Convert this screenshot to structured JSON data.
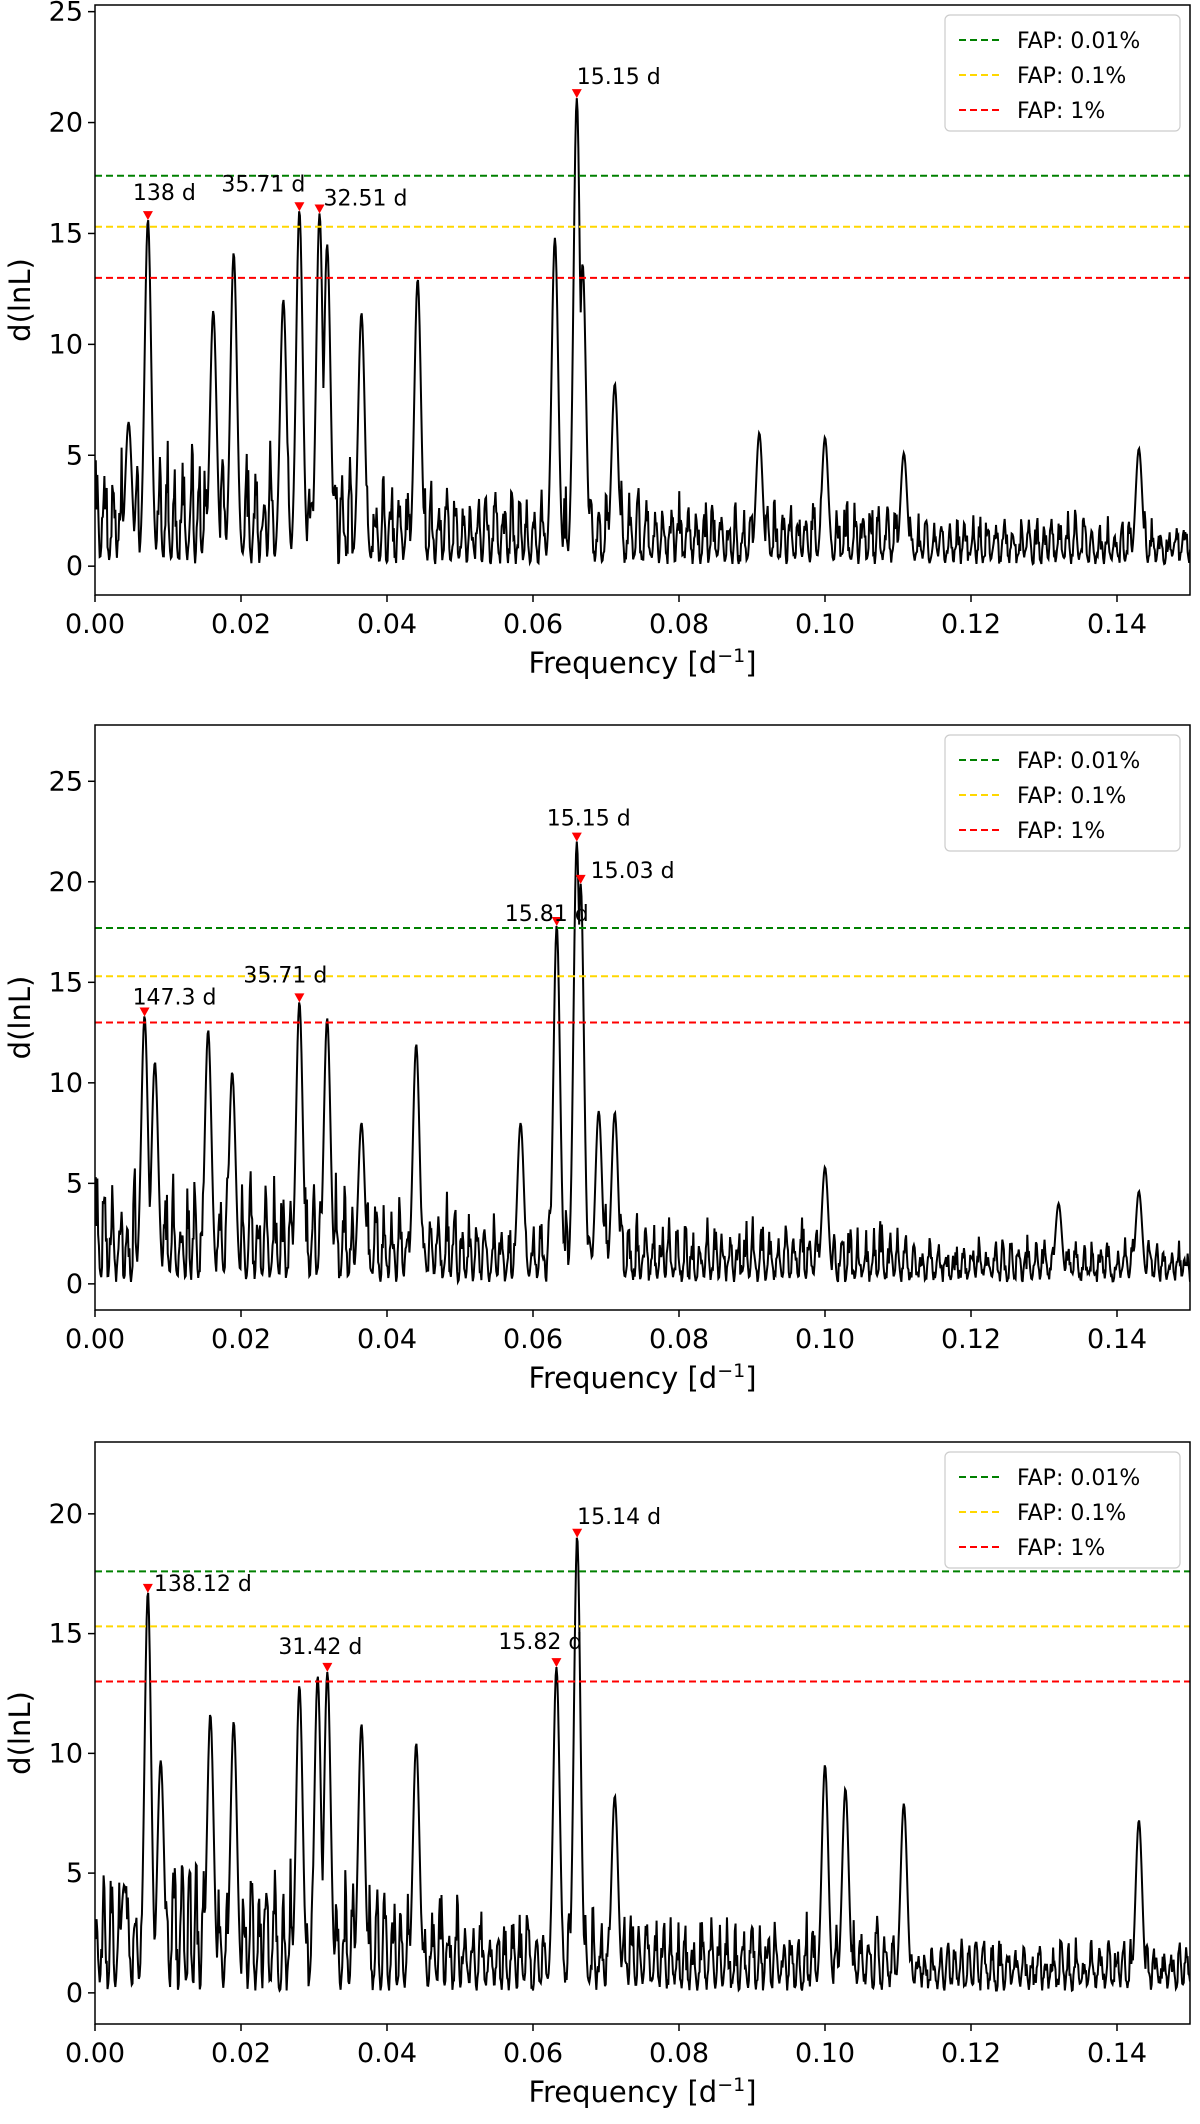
{
  "chart_data": [
    {
      "type": "line",
      "xlabel": "Frequency",
      "xlabel_unit": "d",
      "xlabel_unit_exp": "−1",
      "ylabel": "d(lnL)",
      "xlim": [
        0,
        0.15
      ],
      "ylim": [
        -1.3,
        25.3
      ],
      "xticks": [
        0.0,
        0.02,
        0.04,
        0.06,
        0.08,
        0.1,
        0.12,
        0.14
      ],
      "xtick_labels": [
        "0.00",
        "0.02",
        "0.04",
        "0.06",
        "0.08",
        "0.10",
        "0.12",
        "0.14"
      ],
      "yticks": [
        0,
        5,
        10,
        15,
        20,
        25
      ],
      "ytick_labels": [
        "0",
        "5",
        "10",
        "15",
        "20",
        "25"
      ],
      "fap_lines": [
        {
          "label": "FAP: 0.01%",
          "value": 17.6,
          "color": "#008000"
        },
        {
          "label": "FAP: 0.1%",
          "value": 15.3,
          "color": "#ffd700"
        },
        {
          "label": "FAP: 1%",
          "value": 13.0,
          "color": "#ff0000"
        }
      ],
      "peaks": [
        {
          "label": "138 d",
          "x": 0.00725,
          "y": 15.6
        },
        {
          "label": "35.71 d",
          "x": 0.028,
          "y": 16.0
        },
        {
          "label": "32.51 d",
          "x": 0.03076,
          "y": 15.9
        },
        {
          "label": "15.15 d",
          "x": 0.066,
          "y": 21.1
        }
      ],
      "extra_peaks": [
        [
          0.0046,
          6.5
        ],
        [
          0.0162,
          11.5
        ],
        [
          0.019,
          14.1
        ],
        [
          0.0258,
          12.0
        ],
        [
          0.0318,
          14.5
        ],
        [
          0.0365,
          11.4
        ],
        [
          0.0442,
          12.9
        ],
        [
          0.063,
          14.8
        ],
        [
          0.0668,
          13.6
        ],
        [
          0.0712,
          8.2
        ],
        [
          0.091,
          6.0
        ],
        [
          0.1,
          5.8
        ],
        [
          0.1108,
          5.1
        ],
        [
          0.143,
          5.3
        ]
      ]
    },
    {
      "type": "line",
      "xlabel": "Frequency",
      "xlabel_unit": "d",
      "xlabel_unit_exp": "−1",
      "ylabel": "d(lnL)",
      "xlim": [
        0,
        0.15
      ],
      "ylim": [
        -1.3,
        27.8
      ],
      "xticks": [
        0.0,
        0.02,
        0.04,
        0.06,
        0.08,
        0.1,
        0.12,
        0.14
      ],
      "xtick_labels": [
        "0.00",
        "0.02",
        "0.04",
        "0.06",
        "0.08",
        "0.10",
        "0.12",
        "0.14"
      ],
      "yticks": [
        0,
        5,
        10,
        15,
        20,
        25
      ],
      "ytick_labels": [
        "0",
        "5",
        "10",
        "15",
        "20",
        "25"
      ],
      "fap_lines": [
        {
          "label": "FAP: 0.01%",
          "value": 17.7,
          "color": "#008000"
        },
        {
          "label": "FAP: 0.1%",
          "value": 15.3,
          "color": "#ffd700"
        },
        {
          "label": "FAP: 1%",
          "value": 13.0,
          "color": "#ff0000"
        }
      ],
      "peaks": [
        {
          "label": "147.3 d",
          "x": 0.00679,
          "y": 13.3
        },
        {
          "label": "35.71 d",
          "x": 0.028,
          "y": 14.0
        },
        {
          "label": "15.81 d",
          "x": 0.06325,
          "y": 17.8
        },
        {
          "label": "15.15 d",
          "x": 0.066,
          "y": 22.0
        },
        {
          "label": "15.03 d",
          "x": 0.06653,
          "y": 19.9
        }
      ],
      "extra_peaks": [
        [
          0.0082,
          11.0
        ],
        [
          0.0155,
          12.6
        ],
        [
          0.0188,
          10.5
        ],
        [
          0.0318,
          13.2
        ],
        [
          0.0365,
          8.0
        ],
        [
          0.044,
          11.9
        ],
        [
          0.0583,
          8.0
        ],
        [
          0.069,
          8.6
        ],
        [
          0.0712,
          8.5
        ],
        [
          0.1,
          5.8
        ],
        [
          0.132,
          4.0
        ],
        [
          0.143,
          4.6
        ]
      ]
    },
    {
      "type": "line",
      "xlabel": "Frequency",
      "xlabel_unit": "d",
      "xlabel_unit_exp": "−1",
      "ylabel": "d(lnL)",
      "xlim": [
        0,
        0.15
      ],
      "ylim": [
        -1.3,
        23.0
      ],
      "xticks": [
        0.0,
        0.02,
        0.04,
        0.06,
        0.08,
        0.1,
        0.12,
        0.14
      ],
      "xtick_labels": [
        "0.00",
        "0.02",
        "0.04",
        "0.06",
        "0.08",
        "0.10",
        "0.12",
        "0.14"
      ],
      "yticks": [
        0,
        5,
        10,
        15,
        20
      ],
      "ytick_labels": [
        "0",
        "5",
        "10",
        "15",
        "20"
      ],
      "fap_lines": [
        {
          "label": "FAP: 0.01%",
          "value": 17.6,
          "color": "#008000"
        },
        {
          "label": "FAP: 0.1%",
          "value": 15.3,
          "color": "#ffd700"
        },
        {
          "label": "FAP: 1%",
          "value": 13.0,
          "color": "#ff0000"
        }
      ],
      "peaks": [
        {
          "label": "138.12 d",
          "x": 0.00724,
          "y": 16.7
        },
        {
          "label": "31.42 d",
          "x": 0.03183,
          "y": 13.4
        },
        {
          "label": "15.82 d",
          "x": 0.06321,
          "y": 13.6
        },
        {
          "label": "15.14 d",
          "x": 0.06605,
          "y": 19.0
        }
      ],
      "extra_peaks": [
        [
          0.004,
          4.5
        ],
        [
          0.009,
          9.7
        ],
        [
          0.0158,
          11.6
        ],
        [
          0.019,
          11.3
        ],
        [
          0.028,
          12.8
        ],
        [
          0.0305,
          13.2
        ],
        [
          0.0365,
          11.2
        ],
        [
          0.044,
          10.4
        ],
        [
          0.0712,
          8.2
        ],
        [
          0.1,
          9.5
        ],
        [
          0.1028,
          8.5
        ],
        [
          0.1108,
          7.9
        ],
        [
          0.143,
          7.2
        ]
      ]
    }
  ]
}
